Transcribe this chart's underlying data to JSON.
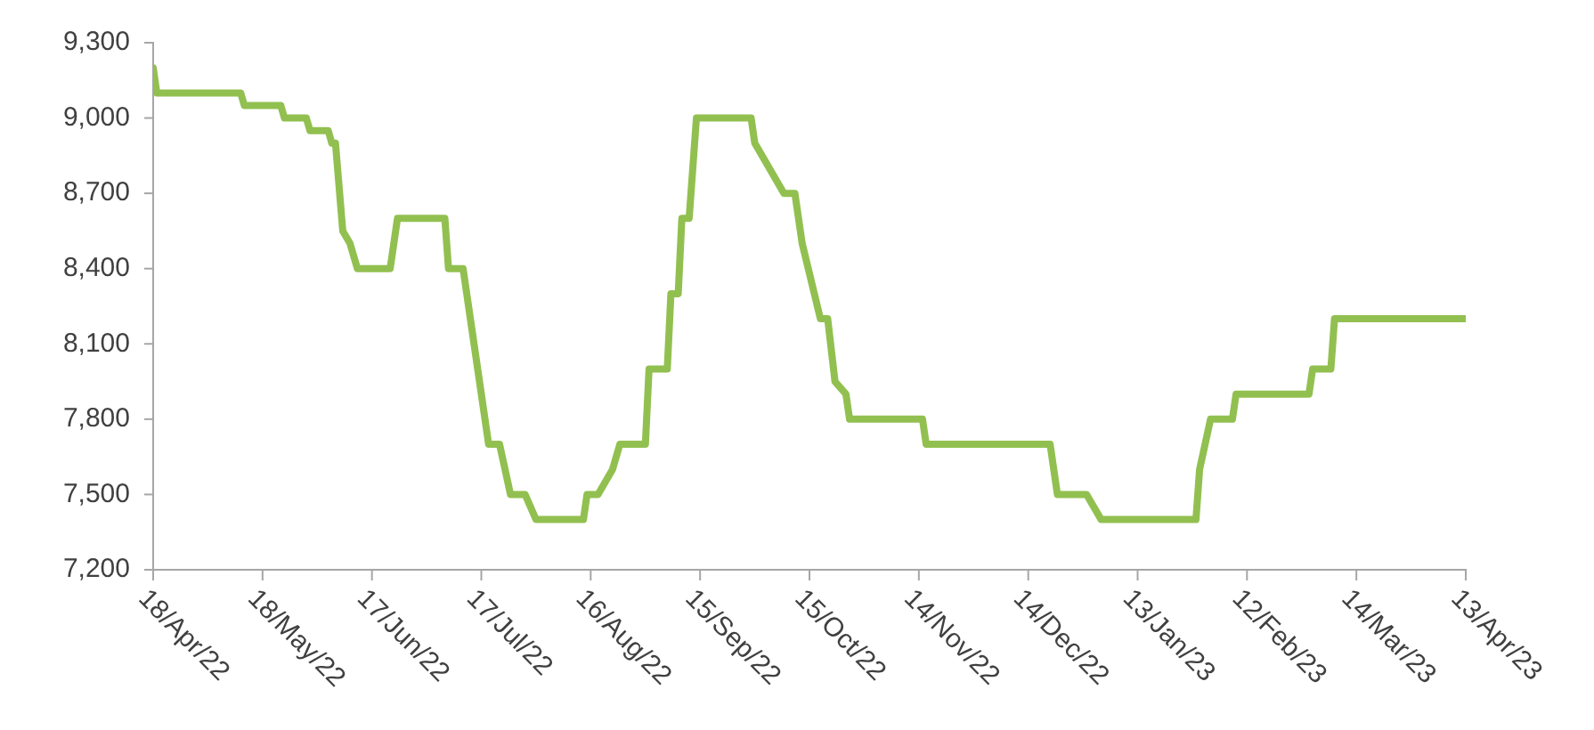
{
  "chart_data": {
    "type": "step",
    "x": [
      "2022-04-18",
      "2022-04-19",
      "2022-05-12",
      "2022-05-13",
      "2022-05-23",
      "2022-05-24",
      "2022-05-30",
      "2022-05-31",
      "2022-06-05",
      "2022-06-06",
      "2022-06-07",
      "2022-06-09",
      "2022-06-11",
      "2022-06-13",
      "2022-06-22",
      "2022-06-24",
      "2022-07-07",
      "2022-07-08",
      "2022-07-12",
      "2022-07-14",
      "2022-07-17",
      "2022-07-19",
      "2022-07-22",
      "2022-07-25",
      "2022-07-29",
      "2022-08-01",
      "2022-08-14",
      "2022-08-15",
      "2022-08-18",
      "2022-08-22",
      "2022-08-24",
      "2022-08-31",
      "2022-09-01",
      "2022-09-06",
      "2022-09-07",
      "2022-09-09",
      "2022-09-10",
      "2022-09-12",
      "2022-09-14",
      "2022-09-29",
      "2022-09-30",
      "2022-10-08",
      "2022-10-11",
      "2022-10-13",
      "2022-10-18",
      "2022-10-20",
      "2022-10-22",
      "2022-10-25",
      "2022-10-26",
      "2022-11-15",
      "2022-11-16",
      "2022-12-20",
      "2022-12-22",
      "2022-12-30",
      "2023-01-03",
      "2023-01-29",
      "2023-01-30",
      "2023-02-02",
      "2023-02-08",
      "2023-02-09",
      "2023-03-01",
      "2023-03-02",
      "2023-03-07",
      "2023-03-08",
      "2023-04-13"
    ],
    "series": [
      {
        "color": "#92c050",
        "values": [
          9200,
          9100,
          9100,
          9050,
          9050,
          9000,
          9000,
          8950,
          8950,
          8900,
          8900,
          8550,
          8500,
          8400,
          8400,
          8600,
          8600,
          8400,
          8400,
          8200,
          7900,
          7700,
          7700,
          7500,
          7500,
          7400,
          7400,
          7500,
          7500,
          7600,
          7700,
          7700,
          8000,
          8000,
          8300,
          8300,
          8600,
          8600,
          9000,
          9000,
          8900,
          8700,
          8700,
          8500,
          8200,
          8200,
          7950,
          7900,
          7800,
          7800,
          7700,
          7700,
          7500,
          7500,
          7400,
          7400,
          7600,
          7800,
          7800,
          7900,
          7900,
          8000,
          8000,
          8200,
          8200
        ]
      }
    ],
    "xlim": [
      "2022-04-18",
      "2023-04-13"
    ],
    "xticks": [
      {
        "value": "2022-04-18",
        "label": "18/Apr/22"
      },
      {
        "value": "2022-05-18",
        "label": "18/May/22"
      },
      {
        "value": "2022-06-17",
        "label": "17/Jun/22"
      },
      {
        "value": "2022-07-17",
        "label": "17/Jul/22"
      },
      {
        "value": "2022-08-16",
        "label": "16/Aug/22"
      },
      {
        "value": "2022-09-15",
        "label": "15/Sep/22"
      },
      {
        "value": "2022-10-15",
        "label": "15/Oct/22"
      },
      {
        "value": "2022-11-14",
        "label": "14/Nov/22"
      },
      {
        "value": "2022-12-14",
        "label": "14/Dec/22"
      },
      {
        "value": "2023-01-13",
        "label": "13/Jan/23"
      },
      {
        "value": "2023-02-12",
        "label": "12/Feb/23"
      },
      {
        "value": "2023-03-14",
        "label": "14/Mar/23"
      },
      {
        "value": "2023-04-13",
        "label": "13/Apr/23"
      }
    ],
    "ylim": [
      7200,
      9300
    ],
    "yticks": [
      {
        "value": 7200,
        "label": "7,200"
      },
      {
        "value": 7500,
        "label": "7,500"
      },
      {
        "value": 7800,
        "label": "7,800"
      },
      {
        "value": 8100,
        "label": "8,100"
      },
      {
        "value": 8400,
        "label": "8,400"
      },
      {
        "value": 8700,
        "label": "8,700"
      },
      {
        "value": 9000,
        "label": "9,000"
      },
      {
        "value": 9300,
        "label": "9,300"
      }
    ],
    "grid": false,
    "legend": false,
    "marker": "none",
    "line_style": "solid"
  }
}
